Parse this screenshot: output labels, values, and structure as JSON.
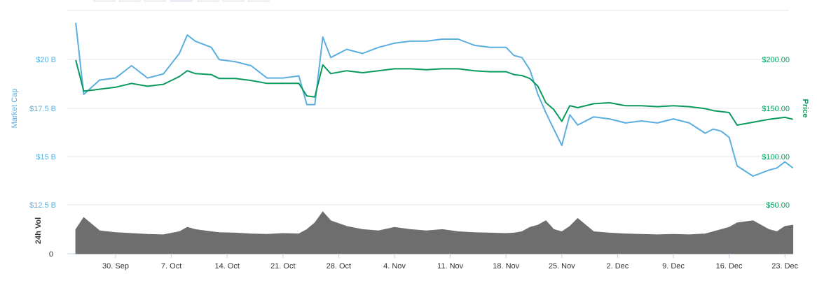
{
  "chart_data": {
    "type": "line",
    "labels": {
      "left_axis": "Market Cap",
      "right_axis": "Price",
      "volume_axis": "24h Vol"
    },
    "left_axis_ticks": [
      "$20 B",
      "$17.5 B",
      "$15 B",
      "$12.5 B"
    ],
    "right_axis_ticks": [
      "$200.00",
      "$150.00",
      "$100.00",
      "$50.00"
    ],
    "volume_axis_ticks": [
      "0"
    ],
    "x_ticks": [
      "30. Sep",
      "7. Oct",
      "14. Oct",
      "21. Oct",
      "28. Oct",
      "4. Nov",
      "11. Nov",
      "18. Nov",
      "25. Nov",
      "2. Dec",
      "9. Dec",
      "16. Dec",
      "23. Dec"
    ],
    "left_ylim": [
      12.5,
      22.0
    ],
    "right_ylim": [
      50,
      250
    ],
    "colors": {
      "market_cap": "#5aaee0",
      "price": "#0a9a5e",
      "volume": "#6e6e6e"
    },
    "series": [
      {
        "name": "Market Cap",
        "axis": "left",
        "unit": "B",
        "x": [
          "2018-09-25",
          "2018-09-26",
          "2018-09-28",
          "2018-09-30",
          "2018-10-02",
          "2018-10-04",
          "2018-10-06",
          "2018-10-08",
          "2018-10-09",
          "2018-10-10",
          "2018-10-12",
          "2018-10-13",
          "2018-10-15",
          "2018-10-17",
          "2018-10-19",
          "2018-10-21",
          "2018-10-23",
          "2018-10-24",
          "2018-10-25",
          "2018-10-26",
          "2018-10-27",
          "2018-10-29",
          "2018-10-31",
          "2018-11-02",
          "2018-11-04",
          "2018-11-06",
          "2018-11-08",
          "2018-11-10",
          "2018-11-12",
          "2018-11-14",
          "2018-11-16",
          "2018-11-18",
          "2018-11-19",
          "2018-11-20",
          "2018-11-21",
          "2018-11-22",
          "2018-11-23",
          "2018-11-24",
          "2018-11-25",
          "2018-11-26",
          "2018-11-27",
          "2018-11-29",
          "2018-12-01",
          "2018-12-03",
          "2018-12-05",
          "2018-12-07",
          "2018-12-09",
          "2018-12-11",
          "2018-12-13",
          "2018-12-14",
          "2018-12-15",
          "2018-12-16",
          "2018-12-17",
          "2018-12-19",
          "2018-12-21",
          "2018-12-22",
          "2018-12-23",
          "2018-12-24"
        ],
        "values": [
          21.4,
          17.9,
          18.6,
          18.7,
          19.3,
          18.7,
          18.9,
          19.9,
          20.8,
          20.5,
          20.2,
          19.6,
          19.5,
          19.3,
          18.7,
          18.7,
          18.8,
          17.4,
          17.4,
          20.7,
          19.7,
          20.1,
          19.9,
          20.2,
          20.4,
          20.5,
          20.5,
          20.6,
          20.6,
          20.3,
          20.2,
          20.2,
          19.8,
          19.7,
          19.1,
          17.9,
          17.0,
          16.2,
          15.4,
          16.9,
          16.4,
          16.8,
          16.7,
          16.5,
          16.6,
          16.5,
          16.7,
          16.5,
          16.0,
          16.2,
          16.1,
          15.8,
          14.4,
          13.9,
          14.2,
          14.3,
          14.6,
          14.3
        ]
      },
      {
        "name": "Price",
        "axis": "right",
        "unit": "$",
        "x": [
          "2018-09-25",
          "2018-09-26",
          "2018-09-28",
          "2018-09-30",
          "2018-10-02",
          "2018-10-04",
          "2018-10-06",
          "2018-10-08",
          "2018-10-09",
          "2018-10-10",
          "2018-10-12",
          "2018-10-13",
          "2018-10-15",
          "2018-10-17",
          "2018-10-19",
          "2018-10-21",
          "2018-10-23",
          "2018-10-24",
          "2018-10-25",
          "2018-10-26",
          "2018-10-27",
          "2018-10-29",
          "2018-10-31",
          "2018-11-02",
          "2018-11-04",
          "2018-11-06",
          "2018-11-08",
          "2018-11-10",
          "2018-11-12",
          "2018-11-14",
          "2018-11-16",
          "2018-11-18",
          "2018-11-19",
          "2018-11-20",
          "2018-11-21",
          "2018-11-22",
          "2018-11-23",
          "2018-11-24",
          "2018-11-25",
          "2018-11-26",
          "2018-11-27",
          "2018-11-29",
          "2018-12-01",
          "2018-12-03",
          "2018-12-05",
          "2018-12-07",
          "2018-12-09",
          "2018-12-11",
          "2018-12-13",
          "2018-12-14",
          "2018-12-15",
          "2018-12-16",
          "2018-12-17",
          "2018-12-19",
          "2018-12-21",
          "2018-12-22",
          "2018-12-23",
          "2018-12-24"
        ],
        "values": [
          199,
          167,
          169,
          171,
          175,
          172,
          174,
          182,
          188,
          185,
          184,
          180,
          180,
          178,
          175,
          175,
          175,
          162,
          161,
          194,
          185,
          188,
          186,
          188,
          190,
          190,
          189,
          190,
          190,
          188,
          187,
          187,
          184,
          183,
          180,
          172,
          155,
          148,
          136,
          152,
          150,
          154,
          155,
          152,
          152,
          151,
          152,
          151,
          149,
          147,
          146,
          145,
          132,
          135,
          138,
          139,
          140,
          138
        ]
      },
      {
        "name": "24h Vol",
        "axis": "volume",
        "x": [
          "2018-09-25",
          "2018-09-26",
          "2018-09-28",
          "2018-09-30",
          "2018-10-02",
          "2018-10-04",
          "2018-10-06",
          "2018-10-08",
          "2018-10-09",
          "2018-10-10",
          "2018-10-12",
          "2018-10-13",
          "2018-10-15",
          "2018-10-17",
          "2018-10-19",
          "2018-10-21",
          "2018-10-23",
          "2018-10-24",
          "2018-10-25",
          "2018-10-26",
          "2018-10-27",
          "2018-10-29",
          "2018-10-31",
          "2018-11-02",
          "2018-11-04",
          "2018-11-06",
          "2018-11-08",
          "2018-11-10",
          "2018-11-12",
          "2018-11-14",
          "2018-11-16",
          "2018-11-18",
          "2018-11-19",
          "2018-11-20",
          "2018-11-21",
          "2018-11-22",
          "2018-11-23",
          "2018-11-24",
          "2018-11-25",
          "2018-11-26",
          "2018-11-27",
          "2018-11-29",
          "2018-12-01",
          "2018-12-03",
          "2018-12-05",
          "2018-12-07",
          "2018-12-09",
          "2018-12-11",
          "2018-12-13",
          "2018-12-14",
          "2018-12-15",
          "2018-12-16",
          "2018-12-17",
          "2018-12-19",
          "2018-12-21",
          "2018-12-22",
          "2018-12-23",
          "2018-12-24"
        ],
        "values": [
          0.55,
          0.82,
          0.52,
          0.48,
          0.46,
          0.44,
          0.43,
          0.5,
          0.6,
          0.55,
          0.5,
          0.48,
          0.47,
          0.45,
          0.44,
          0.46,
          0.45,
          0.55,
          0.7,
          0.95,
          0.75,
          0.62,
          0.55,
          0.52,
          0.6,
          0.55,
          0.52,
          0.55,
          0.5,
          0.48,
          0.47,
          0.46,
          0.47,
          0.5,
          0.6,
          0.65,
          0.75,
          0.55,
          0.5,
          0.62,
          0.8,
          0.5,
          0.47,
          0.45,
          0.44,
          0.43,
          0.44,
          0.43,
          0.45,
          0.5,
          0.55,
          0.6,
          0.7,
          0.75,
          0.55,
          0.5,
          0.62,
          0.65
        ]
      }
    ],
    "grid": true,
    "legend": "none"
  }
}
